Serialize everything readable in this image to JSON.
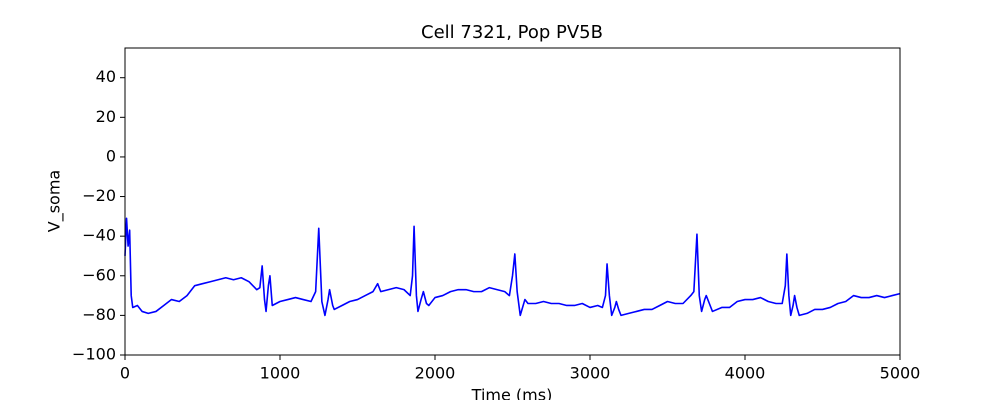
{
  "chart_data": {
    "type": "line",
    "title": "Cell 7321, Pop PV5B",
    "x_label": "Time (ms)",
    "y_label": "V_soma",
    "xlim": [
      0,
      5000
    ],
    "ylim": [
      -100,
      55
    ],
    "xticks": [
      0,
      1000,
      2000,
      3000,
      4000,
      5000
    ],
    "yticks": [
      {
        "value": -100,
        "label": "−100"
      },
      {
        "value": -80,
        "label": "−80"
      },
      {
        "value": -60,
        "label": "−60"
      },
      {
        "value": -40,
        "label": "−40"
      },
      {
        "value": -20,
        "label": "−20"
      },
      0,
      20,
      40
    ],
    "series": [
      {
        "name": "V_soma",
        "color": "#0000ff",
        "x": [
          0,
          10,
          20,
          30,
          40,
          50,
          80,
          110,
          150,
          200,
          250,
          300,
          350,
          400,
          450,
          500,
          550,
          600,
          650,
          700,
          750,
          800,
          850,
          870,
          885,
          900,
          910,
          925,
          935,
          950,
          1000,
          1050,
          1100,
          1150,
          1200,
          1230,
          1250,
          1270,
          1290,
          1310,
          1320,
          1340,
          1350,
          1400,
          1450,
          1500,
          1550,
          1600,
          1630,
          1650,
          1700,
          1750,
          1800,
          1840,
          1855,
          1865,
          1880,
          1890,
          1910,
          1925,
          1945,
          1960,
          2000,
          2050,
          2100,
          2150,
          2200,
          2250,
          2300,
          2350,
          2400,
          2450,
          2480,
          2500,
          2515,
          2530,
          2550,
          2580,
          2600,
          2650,
          2700,
          2750,
          2800,
          2850,
          2900,
          2950,
          3000,
          3050,
          3080,
          3100,
          3110,
          3125,
          3140,
          3160,
          3170,
          3185,
          3200,
          3250,
          3300,
          3350,
          3400,
          3450,
          3500,
          3550,
          3600,
          3650,
          3670,
          3690,
          3705,
          3720,
          3740,
          3750,
          3770,
          3790,
          3850,
          3900,
          3950,
          4000,
          4050,
          4100,
          4150,
          4200,
          4240,
          4260,
          4270,
          4283,
          4295,
          4310,
          4320,
          4335,
          4350,
          4400,
          4450,
          4500,
          4550,
          4600,
          4650,
          4700,
          4750,
          4800,
          4850,
          4900,
          4950,
          5000
        ],
        "values": [
          -50,
          -31,
          -45,
          -37,
          -70,
          -76,
          -75,
          -78,
          -79,
          -78,
          -75,
          -72,
          -73,
          -70,
          -65,
          -64,
          -63,
          -62,
          -61,
          -62,
          -61,
          -63,
          -67,
          -66,
          -55,
          -72,
          -78,
          -65,
          -60,
          -75,
          -73,
          -72,
          -71,
          -72,
          -73,
          -68,
          -36,
          -73,
          -80,
          -72,
          -67,
          -75,
          -77,
          -75,
          -73,
          -72,
          -70,
          -68,
          -64,
          -68,
          -67,
          -66,
          -67,
          -70,
          -60,
          -35,
          -70,
          -78,
          -72,
          -68,
          -74,
          -75,
          -71,
          -70,
          -68,
          -67,
          -67,
          -68,
          -68,
          -66,
          -67,
          -68,
          -70,
          -60,
          -49,
          -68,
          -80,
          -72,
          -74,
          -74,
          -73,
          -74,
          -74,
          -75,
          -75,
          -74,
          -76,
          -75,
          -76,
          -70,
          -54,
          -70,
          -80,
          -76,
          -73,
          -77,
          -80,
          -79,
          -78,
          -77,
          -77,
          -75,
          -73,
          -74,
          -74,
          -70,
          -68,
          -39,
          -70,
          -78,
          -72,
          -70,
          -74,
          -78,
          -76,
          -76,
          -73,
          -72,
          -72,
          -71,
          -73,
          -74,
          -74,
          -65,
          -49,
          -70,
          -80,
          -75,
          -70,
          -76,
          -80,
          -79,
          -77,
          -77,
          -76,
          -74,
          -73,
          -70,
          -71,
          -71,
          -70,
          -71,
          -70,
          -69
        ]
      }
    ]
  }
}
